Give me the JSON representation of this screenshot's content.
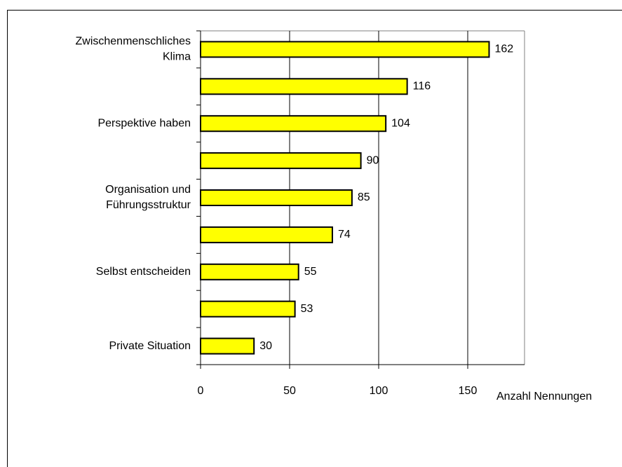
{
  "chart_data": {
    "type": "barh",
    "categories": [
      "Zwischenmenschliches\nKlima",
      null,
      "Perspektive haben",
      null,
      "Organisation und\nFührungsstruktur",
      null,
      "Selbst entscheiden",
      null,
      "Private Situation"
    ],
    "values": [
      162,
      116,
      104,
      90,
      85,
      74,
      55,
      53,
      30
    ],
    "color": "#ffff00",
    "xlabel": "Anzahl Nennungen",
    "xlim": [
      0,
      182
    ],
    "xticks": [
      0,
      50,
      100,
      150
    ],
    "grid": true
  }
}
